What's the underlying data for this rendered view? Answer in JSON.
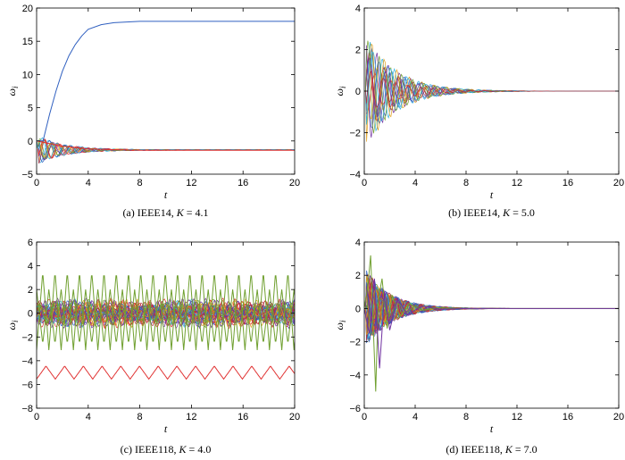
{
  "chart_data": [
    {
      "panel": "a",
      "type": "line",
      "caption_text": "(a) IEEE14, ",
      "caption_k": "K",
      "caption_value": " = 4.1",
      "xlabel": "t",
      "ylabel": "ω",
      "ylabel_sub": "i",
      "xlim": [
        0,
        20
      ],
      "ylim": [
        -5,
        20
      ],
      "xticks": [
        "0",
        "4",
        "8",
        "12",
        "16",
        "20"
      ],
      "yticks": [
        "−5",
        "0",
        "5",
        "10",
        "15",
        "20"
      ],
      "highlight": [
        {
          "color": "#3060c0",
          "x": [
            0,
            0.5,
            1,
            1.5,
            2,
            2.5,
            3,
            3.5,
            4,
            5,
            6,
            7,
            8,
            10,
            12,
            14,
            16,
            18,
            20
          ],
          "y": [
            0,
            0,
            4,
            7.5,
            10.5,
            12.8,
            14.5,
            15.8,
            16.8,
            17.5,
            17.8,
            17.9,
            18,
            18,
            18,
            18,
            18,
            18,
            18
          ]
        },
        {
          "color": "#e03030",
          "x": [
            0,
            2,
            4,
            6,
            8,
            10,
            12,
            14,
            16,
            18,
            20
          ],
          "y": [
            0,
            -0.8,
            -1.2,
            -1.3,
            -1.4,
            -1.4,
            -1.4,
            -1.4,
            -1.4,
            -1.4,
            -1.4
          ]
        }
      ],
      "bundle": {
        "n": 13,
        "amp": 2.4,
        "decay": 0.48,
        "center": -1.35,
        "osc": 0.05,
        "t_end": 20
      }
    },
    {
      "panel": "b",
      "type": "line",
      "caption_text": "(b) IEEE14, ",
      "caption_k": "K",
      "caption_value": " = 5.0",
      "xlabel": "t",
      "ylabel": "ω",
      "ylabel_sub": "i",
      "xlim": [
        0,
        20
      ],
      "ylim": [
        -4,
        4
      ],
      "xticks": [
        "0",
        "4",
        "8",
        "12",
        "16",
        "20"
      ],
      "yticks": [
        "−4",
        "−2",
        "0",
        "2",
        "4"
      ],
      "highlight": [],
      "bundle": {
        "n": 14,
        "amp": 3.0,
        "decay": 0.42,
        "center": 0,
        "osc": 0,
        "t_end": 20
      }
    },
    {
      "panel": "c",
      "type": "line",
      "caption_text": "(c) IEEE118, ",
      "caption_k": "K",
      "caption_value": " = 4.0",
      "xlabel": "t",
      "ylabel": "ω",
      "ylabel_sub": "i",
      "xlim": [
        0,
        20
      ],
      "ylim": [
        -8,
        6
      ],
      "xticks": [
        "0",
        "4",
        "8",
        "12",
        "16",
        "20"
      ],
      "yticks": [
        "−8",
        "−6",
        "−4",
        "−2",
        "0",
        "2",
        "4",
        "6"
      ],
      "highlight": [
        {
          "color": "#e03030",
          "periodic": true,
          "base": -5.0,
          "amp": 0.55,
          "period": 1.45,
          "t_end": 20
        },
        {
          "color": "#70a030",
          "periodic": true,
          "base": 0.2,
          "amp": 3.3,
          "period": 0.95,
          "t_end": 20
        },
        {
          "color": "#70a030",
          "periodic": true,
          "base": -0.3,
          "amp": 2.3,
          "period": 0.95,
          "phase": 0.5,
          "t_end": 20
        }
      ],
      "bundle": {
        "n": 40,
        "amp": 1.3,
        "decay": 0,
        "center": 0,
        "osc": 0.9,
        "t_end": 20
      }
    },
    {
      "panel": "d",
      "type": "line",
      "caption_text": "(d) IEEE118, ",
      "caption_k": "K",
      "caption_value": " = 7.0",
      "xlabel": "t",
      "ylabel": "ω",
      "ylabel_sub": "i",
      "xlim": [
        0,
        20
      ],
      "ylim": [
        -6,
        4
      ],
      "xticks": [
        "0",
        "4",
        "8",
        "12",
        "16",
        "20"
      ],
      "yticks": [
        "−6",
        "−4",
        "−2",
        "0",
        "2",
        "4"
      ],
      "highlight": [
        {
          "color": "#70a030",
          "x": [
            0,
            0.3,
            0.5,
            0.7,
            0.9,
            1.1,
            1.4,
            1.8,
            2.2,
            2.8,
            3.5,
            4.5,
            6,
            8,
            20
          ],
          "y": [
            0,
            1.5,
            3.2,
            -1,
            -5,
            0.5,
            1.8,
            -1.2,
            0.8,
            -0.5,
            0.3,
            -0.1,
            0.05,
            0,
            0
          ]
        },
        {
          "color": "#7030a0",
          "x": [
            0,
            0.4,
            0.8,
            1.2,
            1.6,
            2.0,
            2.6,
            3.4,
            4.5,
            6,
            8,
            20
          ],
          "y": [
            0,
            -1.5,
            1.8,
            -3.6,
            1.0,
            -1.3,
            0.6,
            -0.4,
            0.15,
            -0.05,
            0,
            0
          ]
        }
      ],
      "bundle": {
        "n": 40,
        "amp": 2.6,
        "decay": 0.5,
        "center": 0,
        "osc": 0,
        "t_end": 20
      }
    }
  ]
}
